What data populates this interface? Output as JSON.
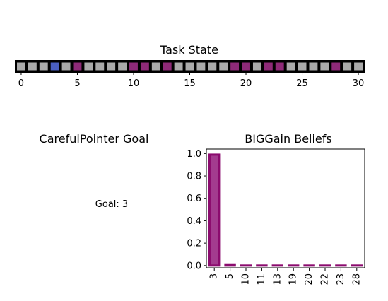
{
  "task_state": {
    "title": "Task State",
    "cells": 31,
    "highlight_cells": [
      5,
      10,
      11,
      13,
      19,
      20,
      22,
      23,
      28
    ],
    "pointer_cell": 3,
    "xticks": [
      0,
      5,
      10,
      15,
      20,
      25,
      30
    ],
    "colors": {
      "cell": "#aaaaaa",
      "highlight": "#8e2a78",
      "pointer": "#4a5fc0",
      "border": "#000000"
    }
  },
  "goal_panel": {
    "title": "CarefulPointer Goal",
    "text": "Goal: 3"
  },
  "chart_data": {
    "type": "bar",
    "title": "BIGGain Beliefs",
    "categories": [
      "3",
      "5",
      "10",
      "11",
      "13",
      "19",
      "20",
      "22",
      "23",
      "28"
    ],
    "values": [
      0.99,
      0.01,
      0,
      0,
      0,
      0,
      0,
      0,
      0,
      0
    ],
    "ylim": [
      -0.02,
      1.04
    ],
    "yticks": [
      "0.0",
      "0.2",
      "0.4",
      "0.6",
      "0.8",
      "1.0"
    ],
    "colors": {
      "bar_fill": "#a33c8f",
      "bar_edge": "#8b0b6e"
    }
  }
}
